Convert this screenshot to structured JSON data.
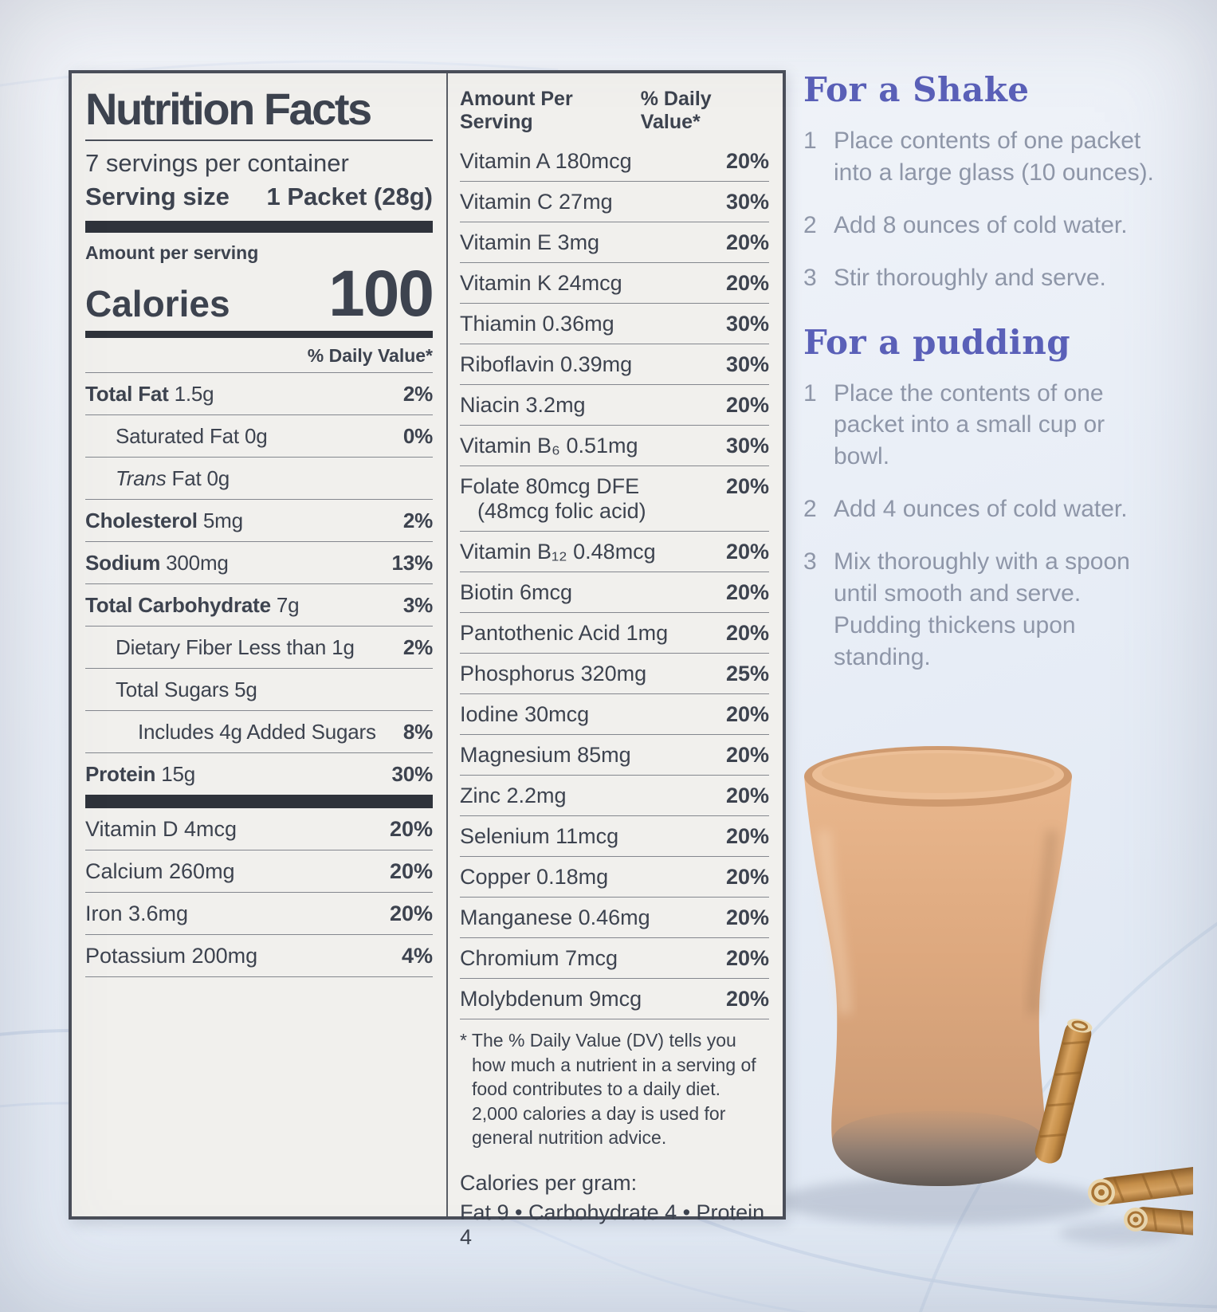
{
  "label": {
    "title": "Nutrition Facts",
    "servings": "7 servings per container",
    "serving_size_label": "Serving size",
    "serving_size_value": "1 Packet (28g)",
    "amount_per_serving": "Amount per serving",
    "calories_label": "Calories",
    "calories_value": "100",
    "dv_header": "% Daily Value*",
    "nutrients": [
      {
        "bold": "Total Fat",
        "rest": "1.5g",
        "dv": "2%",
        "indent": 0
      },
      {
        "rest": "Saturated Fat 0g",
        "dv": "0%",
        "indent": 1
      },
      {
        "italic": "Trans",
        "rest": "Fat 0g",
        "dv": "",
        "indent": 1
      },
      {
        "bold": "Cholesterol",
        "rest": "5mg",
        "dv": "2%",
        "indent": 0
      },
      {
        "bold": "Sodium",
        "rest": "300mg",
        "dv": "13%",
        "indent": 0
      },
      {
        "bold": "Total Carbohydrate",
        "rest": "7g",
        "dv": "3%",
        "indent": 0
      },
      {
        "rest": "Dietary Fiber Less than 1g",
        "dv": "2%",
        "indent": 1
      },
      {
        "rest": "Total Sugars 5g",
        "dv": "",
        "indent": 1
      },
      {
        "rest": "Includes 4g Added Sugars",
        "dv": "8%",
        "indent": 2
      },
      {
        "bold": "Protein",
        "rest": "15g",
        "dv": "30%",
        "indent": 0
      }
    ],
    "minerals": [
      {
        "rest": "Vitamin D 4mcg",
        "dv": "20%"
      },
      {
        "rest": "Calcium 260mg",
        "dv": "20%"
      },
      {
        "rest": "Iron 3.6mg",
        "dv": "20%"
      },
      {
        "rest": "Potassium 200mg",
        "dv": "4%"
      }
    ],
    "col2_header_left": "Amount Per Serving",
    "col2_header_right": "% Daily Value*",
    "col2_rows": [
      {
        "name": "Vitamin A 180mcg",
        "dv": "20%"
      },
      {
        "name": "Vitamin C 27mg",
        "dv": "30%"
      },
      {
        "name": "Vitamin E 3mg",
        "dv": "20%"
      },
      {
        "name": "Vitamin K 24mcg",
        "dv": "20%"
      },
      {
        "name": "Thiamin 0.36mg",
        "dv": "30%"
      },
      {
        "name": "Riboflavin 0.39mg",
        "dv": "30%"
      },
      {
        "name": "Niacin 3.2mg",
        "dv": "20%"
      },
      {
        "name": "Vitamin B₆ 0.51mg",
        "dv": "30%"
      },
      {
        "name": "Folate 80mcg DFE",
        "sub": "(48mcg folic acid)",
        "dv": "20%"
      },
      {
        "name": "Vitamin B₁₂ 0.48mcg",
        "dv": "20%"
      },
      {
        "name": "Biotin 6mcg",
        "dv": "20%"
      },
      {
        "name": "Pantothenic Acid 1mg",
        "dv": "20%"
      },
      {
        "name": "Phosphorus 320mg",
        "dv": "25%"
      },
      {
        "name": "Iodine 30mcg",
        "dv": "20%"
      },
      {
        "name": "Magnesium 85mg",
        "dv": "20%"
      },
      {
        "name": "Zinc 2.2mg",
        "dv": "20%"
      },
      {
        "name": "Selenium 11mcg",
        "dv": "20%"
      },
      {
        "name": "Copper 0.18mg",
        "dv": "20%"
      },
      {
        "name": "Manganese 0.46mg",
        "dv": "20%"
      },
      {
        "name": "Chromium 7mcg",
        "dv": "20%"
      },
      {
        "name": "Molybdenum 9mcg",
        "dv": "20%"
      }
    ],
    "footnote": "* The % Daily Value (DV) tells you how much a nutrient in a serving of food contributes to a daily diet. 2,000 calories a day is used for general nutrition advice.",
    "calories_per_gram_label": "Calories per gram:",
    "calories_per_gram_value": "Fat 9  •  Carbohydrate 4  •  Protein 4"
  },
  "instructions": {
    "shake": {
      "title": "For a Shake",
      "steps": [
        {
          "num": "1",
          "text": "Place contents of one packet into a large glass (10 ounces)."
        },
        {
          "num": "2",
          "text": "Add 8 ounces of cold water."
        },
        {
          "num": "3",
          "text": "Stir thoroughly and serve."
        }
      ]
    },
    "pudding": {
      "title": "For a pudding",
      "steps": [
        {
          "num": "1",
          "text": "Place the contents of one packet into a small cup or bowl."
        },
        {
          "num": "2",
          "text": "Add 4 ounces of cold water."
        },
        {
          "num": "3",
          "text": "Mix thoroughly with a spoon until smooth and serve. Pudding thickens upon standing."
        }
      ]
    }
  },
  "colors": {
    "heading_blue": "#5a60b8",
    "body_gray": "#8e96a8",
    "label_text": "#3d434f",
    "shake_tan": "#dda87e"
  }
}
